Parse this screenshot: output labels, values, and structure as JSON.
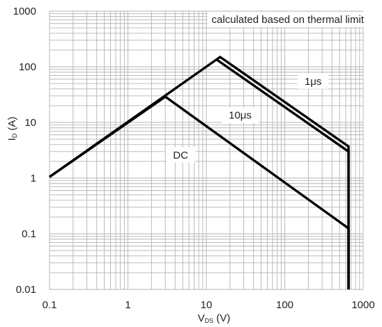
{
  "chart_data": {
    "type": "line",
    "x_scale": "log",
    "y_scale": "log",
    "xlim": [
      0.1,
      1000
    ],
    "ylim": [
      0.01,
      1000
    ],
    "x_ticks": [
      "0.1",
      "1",
      "10",
      "100",
      "1000"
    ],
    "y_ticks": [
      "0.01",
      "0.1",
      "1",
      "10",
      "100",
      "1000"
    ],
    "xlabel": {
      "main": "V",
      "sub": "DS",
      "unit": " (V)"
    },
    "ylabel": {
      "main": "I",
      "sub": "D",
      "unit": " (A)"
    },
    "grid": true,
    "annotation": "calculated based on thermal limit",
    "line_color": "#000000",
    "series": [
      {
        "name": "DC",
        "x": [
          0.1,
          3.0,
          650,
          650
        ],
        "y": [
          1.05,
          29,
          0.125,
          0.01
        ],
        "label_at": {
          "x": 4.7,
          "y": 2.6
        }
      },
      {
        "name": "10μs",
        "x": [
          13.5,
          650,
          650
        ],
        "y": [
          135,
          3,
          0.01
        ],
        "label_at": {
          "x": 27,
          "y": 13.5
        }
      },
      {
        "name": "1μs",
        "x": [
          0.1,
          15.0,
          650,
          650
        ],
        "y": [
          1.05,
          150,
          3.7,
          0.01
        ],
        "label_at": {
          "x": 230,
          "y": 55
        }
      }
    ]
  }
}
